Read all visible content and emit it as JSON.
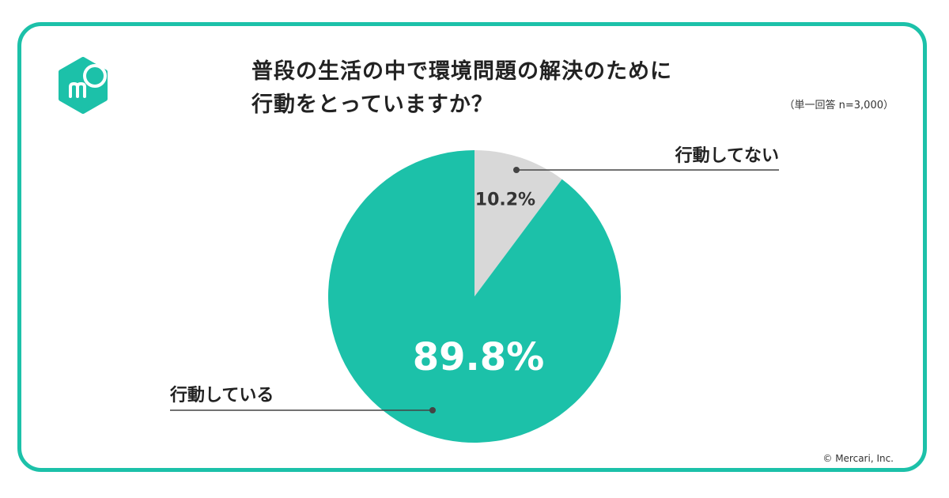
{
  "title_lines": [
    "普段の生活の中で環境問題の解決のために",
    "行動をとっていますか？"
  ],
  "note": "（単一回答 n=3,000）",
  "copyright": "© Mercari, Inc.",
  "colors": {
    "accent": "#1cc1a9",
    "secondary": "#d8d8d8",
    "text": "#222222"
  },
  "logo_icon": "mercari-logo-icon",
  "chart_data": {
    "type": "pie",
    "slices": [
      {
        "label": "行動してない",
        "value": 10.2,
        "value_label": "10.2%",
        "color": "#d8d8d8"
      },
      {
        "label": "行動している",
        "value": 89.8,
        "value_label": "89.8%",
        "color": "#1cc1a9"
      }
    ]
  }
}
